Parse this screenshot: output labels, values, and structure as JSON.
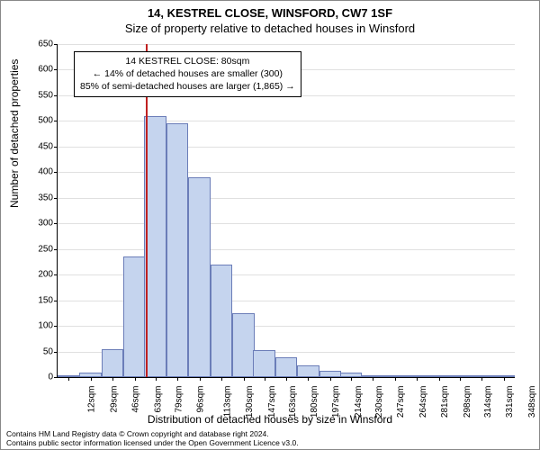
{
  "title": {
    "line1": "14, KESTREL CLOSE, WINSFORD, CW7 1SF",
    "line2": "Size of property relative to detached houses in Winsford"
  },
  "ylabel": "Number of detached properties",
  "xlabel": "Distribution of detached houses by size in Winsford",
  "infobox": {
    "line1": "14 KESTREL CLOSE: 80sqm",
    "line2": "← 14% of detached houses are smaller (300)",
    "line3": "85% of semi-detached houses are larger (1,865) →"
  },
  "chart": {
    "type": "histogram",
    "ylim": [
      0,
      650
    ],
    "yticks": [
      0,
      50,
      100,
      150,
      200,
      250,
      300,
      350,
      400,
      450,
      500,
      550,
      600,
      650
    ],
    "xticks": [
      12,
      29,
      46,
      63,
      79,
      96,
      113,
      130,
      147,
      163,
      180,
      197,
      214,
      230,
      247,
      264,
      281,
      298,
      314,
      331,
      348
    ],
    "xtick_suffix": "sqm",
    "bar_color": "#c5d4ee",
    "bar_border": "#6b7db8",
    "grid_color": "#e0e0e0",
    "background_color": "#ffffff",
    "marker_x": 80,
    "marker_color": "#c02020",
    "bars": [
      {
        "x": 12,
        "v": 2
      },
      {
        "x": 29,
        "v": 8
      },
      {
        "x": 46,
        "v": 55
      },
      {
        "x": 63,
        "v": 235
      },
      {
        "x": 79,
        "v": 510
      },
      {
        "x": 96,
        "v": 495
      },
      {
        "x": 113,
        "v": 390
      },
      {
        "x": 130,
        "v": 220
      },
      {
        "x": 147,
        "v": 125
      },
      {
        "x": 163,
        "v": 52
      },
      {
        "x": 180,
        "v": 38
      },
      {
        "x": 197,
        "v": 22
      },
      {
        "x": 214,
        "v": 12
      },
      {
        "x": 230,
        "v": 8
      },
      {
        "x": 247,
        "v": 4
      },
      {
        "x": 264,
        "v": 3
      },
      {
        "x": 281,
        "v": 2
      },
      {
        "x": 298,
        "v": 1
      },
      {
        "x": 314,
        "v": 1
      },
      {
        "x": 331,
        "v": 1
      },
      {
        "x": 348,
        "v": 1
      }
    ],
    "title_fontsize": 13,
    "label_fontsize": 12,
    "tick_fontsize": 10
  },
  "credit": {
    "line1": "Contains HM Land Registry data © Crown copyright and database right 2024.",
    "line2": "Contains public sector information licensed under the Open Government Licence v3.0."
  }
}
